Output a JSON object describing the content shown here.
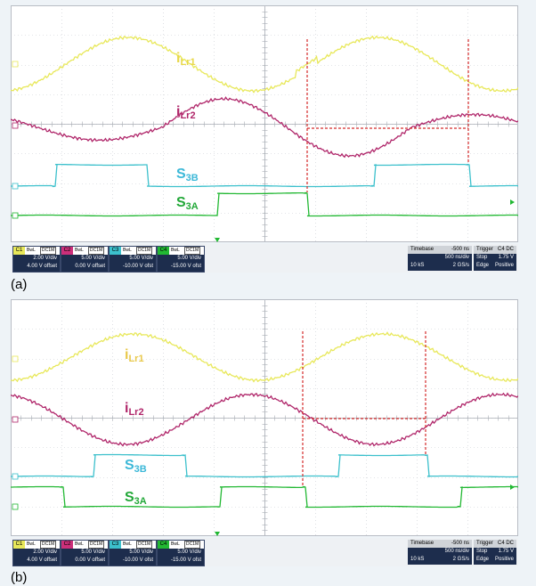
{
  "chart_data": [
    {
      "type": "line",
      "panel_label": "(a)",
      "traces": [
        {
          "name": "iLr1",
          "color": "#e8e85a",
          "shape": "ilr1_a"
        },
        {
          "name": "iLr2",
          "color": "#b0266a",
          "shape": "ilr2_a"
        },
        {
          "name": "S3B",
          "color": "#3cc0cc",
          "shape": "s3b_a"
        },
        {
          "name": "S3A",
          "color": "#22b833",
          "shape": "s3a_a"
        }
      ],
      "labels": [
        {
          "main": "i",
          "sub": "Lr1",
          "color": "#e8d84a"
        },
        {
          "main": "i",
          "sub": "Lr2",
          "color": "#b0266a"
        },
        {
          "main": "S",
          "sub": "3B",
          "color": "#3cb8d8"
        },
        {
          "main": "S",
          "sub": "3A",
          "color": "#22a838"
        }
      ],
      "channels": [
        {
          "num": "C1",
          "color": "#e8e85a",
          "bwl": "BwL",
          "dc": "DC1M",
          "vdiv": "2.00 V/div",
          "offset": "4.00 V offset"
        },
        {
          "num": "C2",
          "color": "#cc2f7a",
          "bwl": "BwL",
          "dc": "DC1M",
          "vdiv": "5.00 V/div",
          "offset": "0.00 V offset"
        },
        {
          "num": "C3",
          "color": "#3cc0cc",
          "bwl": "BwL",
          "dc": "DC1M",
          "vdiv": "5.00 V/div",
          "offset": "-10.00 V ofst"
        },
        {
          "num": "C4",
          "color": "#22b833",
          "bwl": "BwL",
          "dc": "DC1M",
          "vdiv": "5.00 V/div",
          "offset": "-15.00 V ofst"
        }
      ],
      "timebase": {
        "label": "Timebase",
        "value": "-500 ns",
        "div": "500 ns/div",
        "samples": "10 kS",
        "rate": "2 GS/s"
      },
      "trigger": {
        "label": "Trigger",
        "ch": "C4",
        "coupling": "DC",
        "mode": "Stop",
        "level": "1.75 V",
        "type": "Edge",
        "slope": "Positive"
      }
    },
    {
      "type": "line",
      "panel_label": "(b)",
      "traces": [
        {
          "name": "iLr1",
          "color": "#e8e85a",
          "shape": "ilr1_b"
        },
        {
          "name": "iLr2",
          "color": "#b0266a",
          "shape": "ilr2_b"
        },
        {
          "name": "S3B",
          "color": "#3cc0cc",
          "shape": "s3b_b"
        },
        {
          "name": "S3A",
          "color": "#22b833",
          "shape": "s3a_b"
        }
      ],
      "labels": [
        {
          "main": "i",
          "sub": "Lr1",
          "color": "#e8c84a"
        },
        {
          "main": "i",
          "sub": "Lr2",
          "color": "#b0266a"
        },
        {
          "main": "S",
          "sub": "3B",
          "color": "#3cb8d8"
        },
        {
          "main": "S",
          "sub": "3A",
          "color": "#22a838"
        }
      ],
      "channels": [
        {
          "num": "C1",
          "color": "#e8e85a",
          "bwl": "BwL",
          "dc": "DC1M",
          "vdiv": "2.00 V/div",
          "offset": "4.00 V offset"
        },
        {
          "num": "C2",
          "color": "#cc2f7a",
          "bwl": "BwL",
          "dc": "DC1M",
          "vdiv": "5.00 V/div",
          "offset": "0.00 V offset"
        },
        {
          "num": "C3",
          "color": "#3cc0cc",
          "bwl": "BwL",
          "dc": "DC1M",
          "vdiv": "5.00 V/div",
          "offset": "-10.00 V ofst"
        },
        {
          "num": "C4",
          "color": "#22b833",
          "bwl": "BwL",
          "dc": "DC1M",
          "vdiv": "5.00 V/div",
          "offset": "-15.00 V ofst"
        }
      ],
      "timebase": {
        "label": "Timebase",
        "value": "-500 ns",
        "div": "500 ns/div",
        "samples": "10 kS",
        "rate": "2 GS/s"
      },
      "trigger": {
        "label": "Trigger",
        "ch": "C4",
        "coupling": "DC",
        "mode": "Stop",
        "level": "1.75 V",
        "type": "Edge",
        "slope": "Positive"
      }
    }
  ]
}
